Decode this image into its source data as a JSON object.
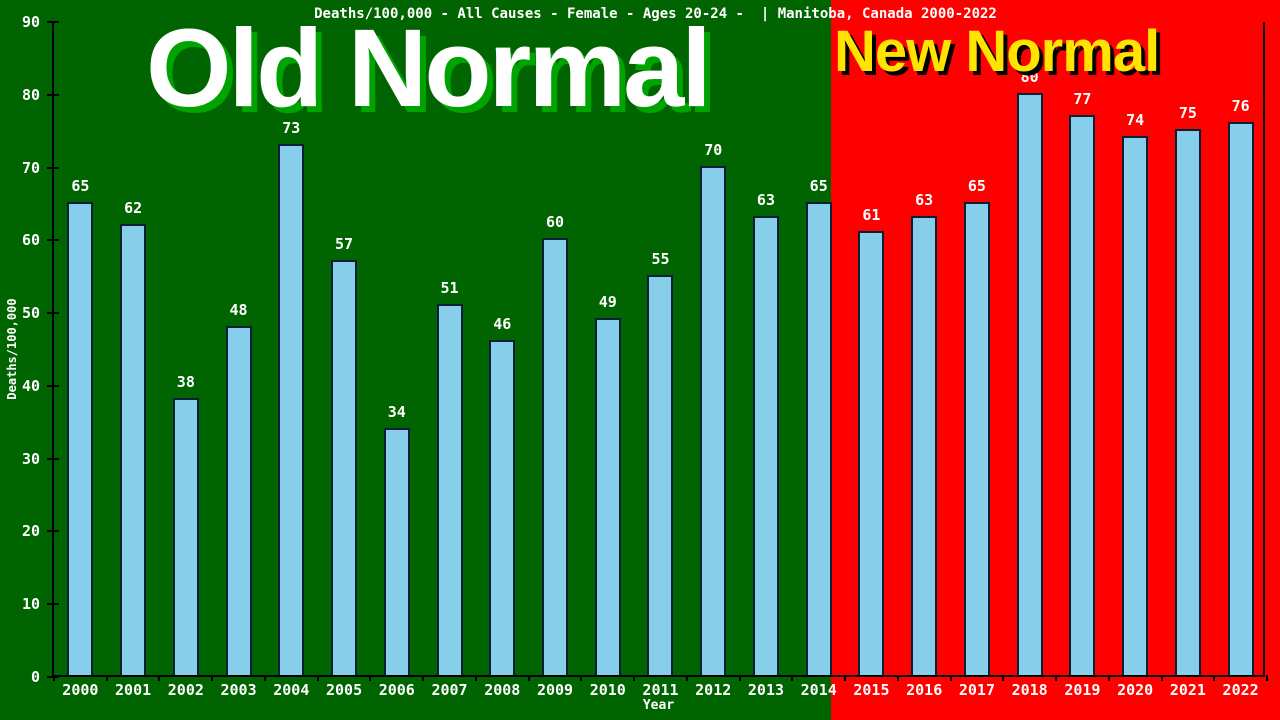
{
  "header": {
    "title": "Deaths/100,000 - All Causes - Female - Ages 20-24 -  | Manitoba, Canada 2000-2022",
    "old_era_headline": "Old Normal",
    "new_era_headline": "New Normal"
  },
  "chart_data": {
    "type": "bar",
    "title": "Deaths/100,000 - All Causes - Female - Ages 20-24 -  | Manitoba, Canada 2000-2022",
    "xlabel": "Year",
    "ylabel": "Deaths/100,000",
    "categories": [
      "2000",
      "2001",
      "2002",
      "2003",
      "2004",
      "2005",
      "2006",
      "2007",
      "2008",
      "2009",
      "2010",
      "2011",
      "2012",
      "2013",
      "2014",
      "2015",
      "2016",
      "2017",
      "2018",
      "2019",
      "2020",
      "2021",
      "2022"
    ],
    "values": [
      65,
      62,
      38,
      48,
      73,
      57,
      34,
      51,
      46,
      60,
      49,
      55,
      70,
      63,
      65,
      61,
      63,
      65,
      80,
      77,
      74,
      75,
      76
    ],
    "ylim": [
      0,
      90
    ],
    "ytick_step": 10,
    "grid": false,
    "legend": null,
    "annotations": [
      {
        "text": "Old Normal",
        "era_years": "2000-2014",
        "background": "#006400"
      },
      {
        "text": "New Normal",
        "era_years": "2015-2022",
        "background": "#fe0000"
      }
    ]
  },
  "colors": {
    "old_era_background": "#006400",
    "new_era_background": "#fe0000",
    "bar_fill": "#87ceeb",
    "bar_edge": "#0a1f33",
    "text": "#ffffff",
    "old_headline_text": "#ffffff",
    "old_headline_shadow": "#00a400",
    "new_headline_text": "#ffe400",
    "new_headline_shadow": "#000000"
  }
}
